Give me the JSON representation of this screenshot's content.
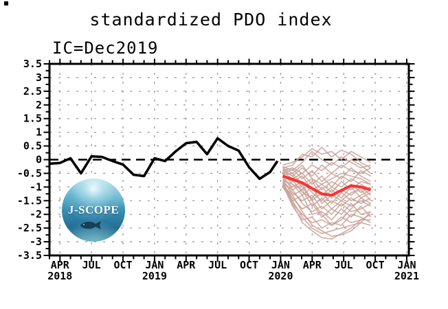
{
  "title": "standardized PDO index",
  "subtitle": "IC=Dec2019",
  "logo": {
    "label": "J-SCOPE"
  },
  "chart_data": {
    "type": "line",
    "title": "standardized PDO index",
    "subtitle": "IC=Dec2019",
    "ylim": [
      -3.5,
      3.5
    ],
    "ytick_step": 0.5,
    "grid": true,
    "legend": "none",
    "zero_line": true,
    "y_tick_labels": [
      "3.5",
      "3",
      "2.5",
      "2",
      "1.5",
      "1",
      "0.5",
      "0",
      "-0.5",
      "-1",
      "-1.5",
      "-2",
      "-2.5",
      "-3",
      "-3.5"
    ],
    "x_tick_labels": [
      "APR",
      "JUL",
      "OCT",
      "JAN",
      "APR",
      "JUL",
      "OCT",
      "JAN",
      "APR",
      "JUL",
      "OCT",
      "JAN"
    ],
    "x_tick_month_index": [
      1,
      4,
      7,
      10,
      13,
      16,
      19,
      22,
      25,
      28,
      31,
      34
    ],
    "x_year_labels": [
      {
        "label": "2018",
        "month_index": 1
      },
      {
        "label": "2019",
        "month_index": 10
      },
      {
        "label": "2020",
        "month_index": 22
      },
      {
        "label": "2021",
        "month_index": 34
      }
    ],
    "x_domain": {
      "start": "MAR 2018",
      "end": "JAN 2021"
    },
    "colors": {
      "observed": "#000000",
      "mean": "#ff3030",
      "members": "#c8a298",
      "grid": "#999999"
    },
    "series": [
      {
        "name": "observed standardized PDO",
        "role": "observed",
        "color": "#000000",
        "months": [
          "MAR2018",
          "APR2018",
          "MAY2018",
          "JUN2018",
          "JUL2018",
          "AUG2018",
          "SEP2018",
          "OCT2018",
          "NOV2018",
          "DEC2018",
          "JAN2019",
          "FEB2019",
          "MAR2019",
          "APR2019",
          "MAY2019",
          "JUN2019",
          "JUL2019",
          "AUG2019",
          "SEP2019",
          "OCT2019",
          "NOV2019",
          "DEC2019",
          "JAN2020"
        ],
        "values": [
          -0.15,
          -0.12,
          0.05,
          -0.5,
          0.12,
          0.1,
          -0.05,
          -0.18,
          -0.55,
          -0.6,
          0.05,
          -0.05,
          0.3,
          0.6,
          0.65,
          0.2,
          0.78,
          0.5,
          0.33,
          -0.28,
          -0.7,
          -0.45,
          -0.05
        ]
      },
      {
        "name": "forecast ensemble mean",
        "role": "mean",
        "color": "#ff3030",
        "months": [
          "JAN2020",
          "FEB2020",
          "MAR2020",
          "APR2020",
          "MAY2020",
          "JUN2020",
          "JUL2020",
          "AUG2020",
          "SEP2020",
          "OCT2020"
        ],
        "values": [
          -0.6,
          -0.72,
          -0.85,
          -1.05,
          -1.25,
          -1.3,
          -1.12,
          -0.95,
          -1.0,
          -1.1
        ]
      },
      {
        "name": "forecast ensemble members",
        "role": "members",
        "color": "#c8a298",
        "months": [
          "JAN2020",
          "FEB2020",
          "MAR2020",
          "APR2020",
          "MAY2020",
          "JUN2020",
          "JUL2020",
          "AUG2020",
          "SEP2020",
          "OCT2020"
        ],
        "members": [
          [
            -0.2,
            -0.1,
            0.1,
            0.4,
            0.2,
            0.3,
            0.0,
            0.3,
            0.1,
            -0.1
          ],
          [
            -0.3,
            -0.2,
            0.2,
            0.1,
            0.45,
            0.1,
            0.35,
            0.2,
            -0.1,
            -0.3
          ],
          [
            -0.25,
            -0.4,
            -0.1,
            0.3,
            0.0,
            -0.2,
            0.1,
            -0.1,
            -0.3,
            -0.2
          ],
          [
            -0.4,
            -0.3,
            -0.5,
            -0.2,
            -0.4,
            -0.1,
            -0.3,
            0.0,
            -0.2,
            -0.5
          ],
          [
            -0.35,
            -0.6,
            -0.3,
            -0.6,
            -0.2,
            -0.5,
            -0.2,
            -0.4,
            -0.5,
            -0.3
          ],
          [
            -0.5,
            -0.35,
            -0.7,
            -0.4,
            -0.8,
            -0.5,
            -0.7,
            -0.3,
            -0.6,
            -0.8
          ],
          [
            -0.45,
            -0.7,
            -0.5,
            -0.9,
            -0.6,
            -1.0,
            -0.6,
            -0.8,
            -0.4,
            -0.6
          ],
          [
            -0.55,
            -0.5,
            -0.9,
            -0.7,
            -1.1,
            -0.8,
            -1.0,
            -0.7,
            -0.9,
            -1.1
          ],
          [
            -0.6,
            -0.8,
            -0.6,
            -1.1,
            -0.9,
            -1.2,
            -0.8,
            -1.1,
            -0.8,
            -0.9
          ],
          [
            -0.5,
            -0.9,
            -1.1,
            -0.8,
            -1.3,
            -1.0,
            -1.2,
            -0.9,
            -1.2,
            -1.0
          ],
          [
            -0.65,
            -0.75,
            -1.2,
            -1.4,
            -1.0,
            -1.4,
            -1.1,
            -1.3,
            -1.0,
            -1.3
          ],
          [
            -0.7,
            -1.0,
            -0.8,
            -1.2,
            -1.5,
            -1.1,
            -1.4,
            -1.0,
            -1.4,
            -1.2
          ],
          [
            -0.75,
            -0.9,
            -1.3,
            -1.0,
            -1.6,
            -1.3,
            -1.5,
            -1.2,
            -1.1,
            -1.5
          ],
          [
            -0.6,
            -1.1,
            -0.9,
            -1.5,
            -1.2,
            -1.6,
            -1.2,
            -1.5,
            -1.3,
            -1.1
          ],
          [
            -0.8,
            -1.2,
            -1.5,
            -1.3,
            -1.8,
            -1.5,
            -1.7,
            -1.4,
            -1.6,
            -1.4
          ],
          [
            -0.7,
            -1.3,
            -1.1,
            -1.7,
            -1.4,
            -1.8,
            -1.5,
            -1.7,
            -1.5,
            -1.7
          ],
          [
            -0.85,
            -1.1,
            -1.6,
            -1.9,
            -1.7,
            -2.0,
            -1.6,
            -1.9,
            -1.8,
            -1.6
          ],
          [
            -0.9,
            -1.4,
            -1.8,
            -1.6,
            -2.1,
            -1.8,
            -2.0,
            -1.6,
            -2.0,
            -1.9
          ],
          [
            -0.8,
            -1.5,
            -1.3,
            -2.0,
            -1.9,
            -2.2,
            -1.8,
            -2.1,
            -1.7,
            -2.1
          ],
          [
            -0.95,
            -1.6,
            -2.0,
            -2.3,
            -2.2,
            -2.4,
            -2.1,
            -2.3,
            -2.2,
            -2.0
          ],
          [
            -0.9,
            -1.7,
            -2.2,
            -2.1,
            -2.5,
            -2.3,
            -2.4,
            -2.0,
            -2.1,
            -2.3
          ],
          [
            -1.0,
            -1.5,
            -2.1,
            -2.5,
            -2.7,
            -2.6,
            -2.5,
            -2.4,
            -2.3,
            -2.4
          ],
          [
            -0.85,
            -1.6,
            -2.3,
            -2.6,
            -2.85,
            -2.9,
            -2.7,
            -2.5,
            -2.2,
            -2.2
          ],
          [
            -0.95,
            -1.3,
            -1.9,
            -2.4,
            -2.6,
            -2.8,
            -2.75,
            -2.6,
            -2.3,
            -1.9
          ],
          [
            -0.4,
            -0.6,
            -1.0,
            -1.5,
            -2.0,
            -2.4,
            -2.2,
            -1.8,
            -1.4,
            -1.6
          ],
          [
            -0.3,
            -0.5,
            -0.2,
            -0.7,
            -0.9,
            -0.7,
            -0.5,
            -0.6,
            -0.7,
            -0.9
          ]
        ]
      }
    ]
  }
}
